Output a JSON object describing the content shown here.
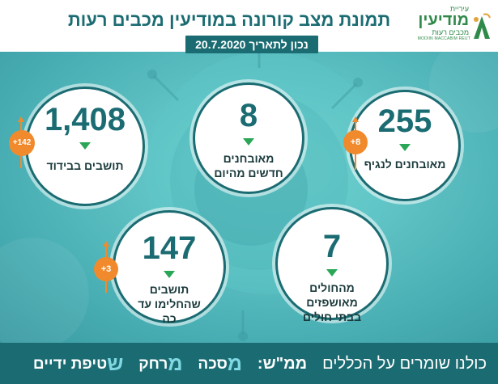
{
  "header": {
    "title": "תמונת מצב קורונה במודיעין מכבים רעות",
    "date_label": "נכון לתאריך 20.7.2020"
  },
  "logo": {
    "top": "עיריית",
    "main": "מודיעין",
    "sub": "מכבים רעות",
    "en": "MODIIN MACCABIM REUT"
  },
  "stats": {
    "diagnosed": {
      "value": "255",
      "label": "מאובחנים לנגיף",
      "delta": "+8"
    },
    "new_today": {
      "value": "8",
      "label": "מאובחנים חדשים מהיום"
    },
    "isolation": {
      "value": "1,408",
      "label": "תושבים בבידוד",
      "delta": "+142"
    },
    "hospitalized": {
      "value": "7",
      "label": "מהחולים מאושפזים בבתי חולים"
    },
    "recovered": {
      "value": "147",
      "label": "תושבים שהחלימו עד כה",
      "delta": "+3"
    }
  },
  "footer": {
    "intro": "כולנו שומרים על הכללים",
    "mamash": "ממ\"ש:",
    "m1": "מ",
    "w1": "סכה",
    "m2": "מ",
    "w2": "רחק",
    "s3": "ש",
    "w3": "טיפת ידיים"
  },
  "colors": {
    "primary": "#1b6c72",
    "accent_green": "#2aa657",
    "delta_orange": "#f08a2c",
    "footer_highlight": "#7fd8e2"
  }
}
